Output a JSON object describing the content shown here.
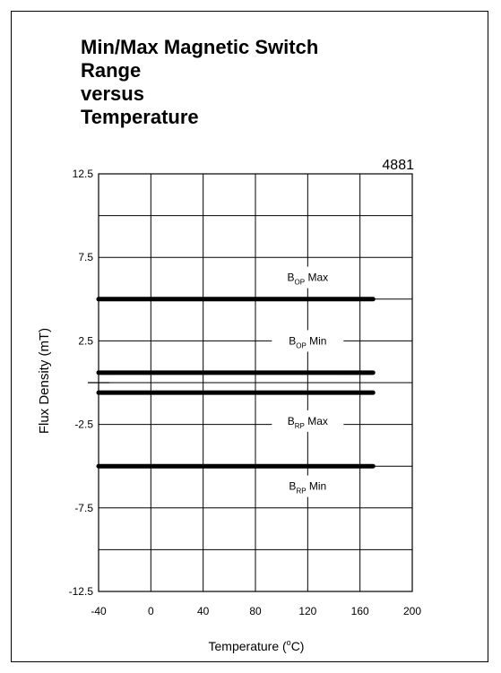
{
  "chart_data": {
    "type": "line",
    "title_lines": [
      "Min/Max Magnetic Switch",
      "Range",
      "versus",
      "Temperature"
    ],
    "part_number": "4881",
    "xlabel": "Temperature (",
    "xlabel_sup": "o",
    "xlabel_end": "C)",
    "ylabel": "Flux Density  (mT)",
    "xlim": [
      -40,
      200
    ],
    "ylim": [
      -12.5,
      12.5
    ],
    "x_ticks": [
      -40,
      0,
      40,
      80,
      120,
      160,
      200
    ],
    "x_tick_labels": [
      "-40",
      "0",
      "40",
      "80",
      "120",
      "160",
      "200"
    ],
    "y_ticks": [
      12.5,
      7.5,
      2.5,
      -2.5,
      -7.5,
      -12.5
    ],
    "y_tick_labels": [
      "12.5",
      "7.5",
      "2.5",
      "-2.5",
      "-7.5",
      "-12.5"
    ],
    "y_gridlines": [
      12.5,
      10,
      7.5,
      5,
      2.5,
      0,
      -2.5,
      -5,
      -7.5,
      -10,
      -12.5
    ],
    "grid": true,
    "series": [
      {
        "name": "B_OP Max",
        "x": [
          -40,
          170
        ],
        "y": [
          5.0,
          5.0
        ]
      },
      {
        "name": "B_OP Min",
        "x": [
          -40,
          170
        ],
        "y": [
          0.6,
          0.6
        ]
      },
      {
        "name": "B_RP Max",
        "x": [
          -40,
          170
        ],
        "y": [
          -0.6,
          -0.6
        ]
      },
      {
        "name": "B_RP Min",
        "x": [
          -40,
          170
        ],
        "y": [
          -5.0,
          -5.0
        ]
      }
    ],
    "annotations": [
      {
        "main": "B",
        "sub": "OP",
        "suffix": " Max",
        "x": 120,
        "y": 6.3
      },
      {
        "main": "B",
        "sub": "OP",
        "suffix": " Min",
        "x": 120,
        "y": 2.5
      },
      {
        "main": "B",
        "sub": "RP",
        "suffix": " Max",
        "x": 120,
        "y": -2.3
      },
      {
        "main": "B",
        "sub": "RP",
        "suffix": " Min",
        "x": 120,
        "y": -6.2
      }
    ],
    "zero_tick_y": 0
  }
}
